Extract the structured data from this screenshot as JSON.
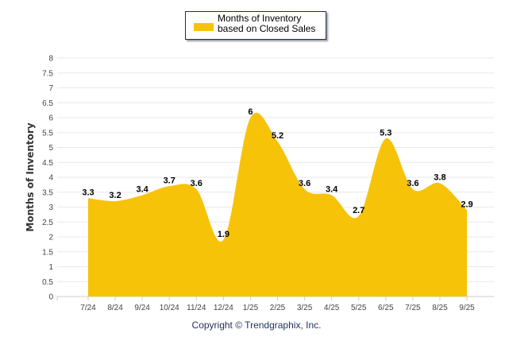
{
  "chart_data": {
    "type": "area",
    "title": "",
    "legend": {
      "label": "Months of Inventory based on Closed Sales",
      "placement": "top-center"
    },
    "categories": [
      "7/24",
      "8/24",
      "9/24",
      "10/24",
      "11/24",
      "12/24",
      "1/25",
      "2/25",
      "3/25",
      "4/25",
      "5/25",
      "6/25",
      "7/25",
      "8/25",
      "9/25"
    ],
    "series": [
      {
        "name": "Months of Inventory based on Closed Sales",
        "values": [
          3.3,
          3.2,
          3.4,
          3.7,
          3.6,
          1.9,
          6,
          5.2,
          3.6,
          3.4,
          2.7,
          5.3,
          3.6,
          3.8,
          2.9
        ],
        "color": "#F7C308"
      }
    ],
    "xlabel": "",
    "ylabel": "Months of Inventory",
    "ylim": [
      0,
      8
    ],
    "yticks": [
      "0",
      "0.5",
      "1",
      "1.5",
      "2",
      "2.5",
      "3",
      "3.5",
      "4",
      "4.5",
      "5",
      "5.5",
      "6",
      "6.5",
      "7",
      "7.5",
      "8"
    ],
    "grid": true
  },
  "footer": {
    "copyright": "Copyright © Trendgraphix, Inc."
  }
}
